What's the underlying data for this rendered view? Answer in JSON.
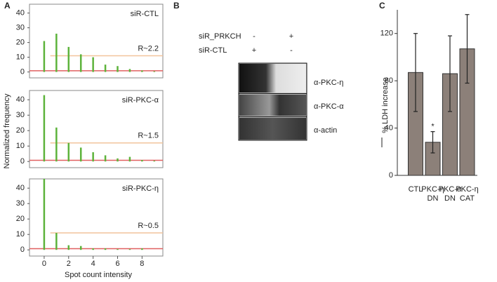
{
  "panel_labels": [
    "A",
    "B",
    "C"
  ],
  "chart_data": [
    {
      "type": "bar",
      "annotation": "siR-CTL",
      "ratio_label": "R~2.2",
      "x": [
        0,
        1,
        2,
        3,
        4,
        5,
        6,
        7,
        8,
        9
      ],
      "values": [
        21,
        26,
        17,
        12,
        10,
        5,
        4,
        2,
        1,
        0.5
      ],
      "color": "#5db33b",
      "xlim": [
        -1.2,
        9.7
      ],
      "ylim": [
        -4,
        46
      ],
      "yticks": [
        0,
        10,
        20,
        30,
        40
      ],
      "hlines": [
        {
          "value": 11,
          "color": "#f2c49c"
        },
        {
          "value": 0.8,
          "color": "#e06060"
        }
      ]
    },
    {
      "type": "bar",
      "annotation": "siR-PKC-α",
      "ratio_label": "R~1.5",
      "ylabel": "Normalized frequency",
      "x": [
        0,
        1,
        2,
        3,
        4,
        5,
        6,
        7,
        8,
        9
      ],
      "values": [
        43,
        22,
        12,
        9,
        6,
        4,
        2,
        3,
        1,
        0.5
      ],
      "color": "#5db33b",
      "xlim": [
        -1.2,
        9.7
      ],
      "ylim": [
        -4,
        46
      ],
      "yticks": [
        0,
        10,
        20,
        30,
        40
      ],
      "hlines": [
        {
          "value": 12,
          "color": "#f2c49c"
        },
        {
          "value": 0.8,
          "color": "#e06060"
        }
      ]
    },
    {
      "type": "bar",
      "annotation": "siR-PKC-η",
      "ratio_label": "R~0.5",
      "xlabel": "Spot count intensity",
      "x": [
        0,
        1,
        2,
        3,
        4,
        5,
        6,
        7,
        8,
        9
      ],
      "values": [
        46,
        11,
        3,
        2.5,
        1,
        1,
        0.5,
        0.5,
        1,
        0
      ],
      "color": "#5db33b",
      "xlim": [
        -1.2,
        9.7
      ],
      "ylim": [
        -4,
        46
      ],
      "yticks": [
        0,
        10,
        20,
        30,
        40
      ],
      "xticks": [
        0,
        2,
        4,
        6,
        8
      ],
      "hlines": [
        {
          "value": 11,
          "color": "#f2c49c"
        },
        {
          "value": 0.8,
          "color": "#e06060"
        }
      ]
    },
    {
      "type": "bar",
      "ylabel": "% LDH increase",
      "categories": [
        [
          "CTL"
        ],
        [
          "PKC-η",
          "DN"
        ],
        [
          "PKC-α",
          "DN"
        ],
        [
          "PKC-η",
          "CAT"
        ]
      ],
      "values": [
        87,
        28,
        86,
        107
      ],
      "errors": [
        33,
        9,
        32,
        29
      ],
      "value_annotations": [
        null,
        "*",
        null,
        null
      ],
      "color": "#8c8079",
      "ylim": [
        0,
        140
      ],
      "yticks": [
        0,
        40,
        80,
        120
      ]
    }
  ],
  "blot": {
    "rows": [
      {
        "label": "siR_PRKCH",
        "signs": [
          "-",
          "+"
        ]
      },
      {
        "label": "siR-CTL",
        "signs": [
          "+",
          "-"
        ]
      }
    ],
    "bands": [
      "α-PKC-η",
      "α-PKC-α",
      "α-actin"
    ]
  }
}
